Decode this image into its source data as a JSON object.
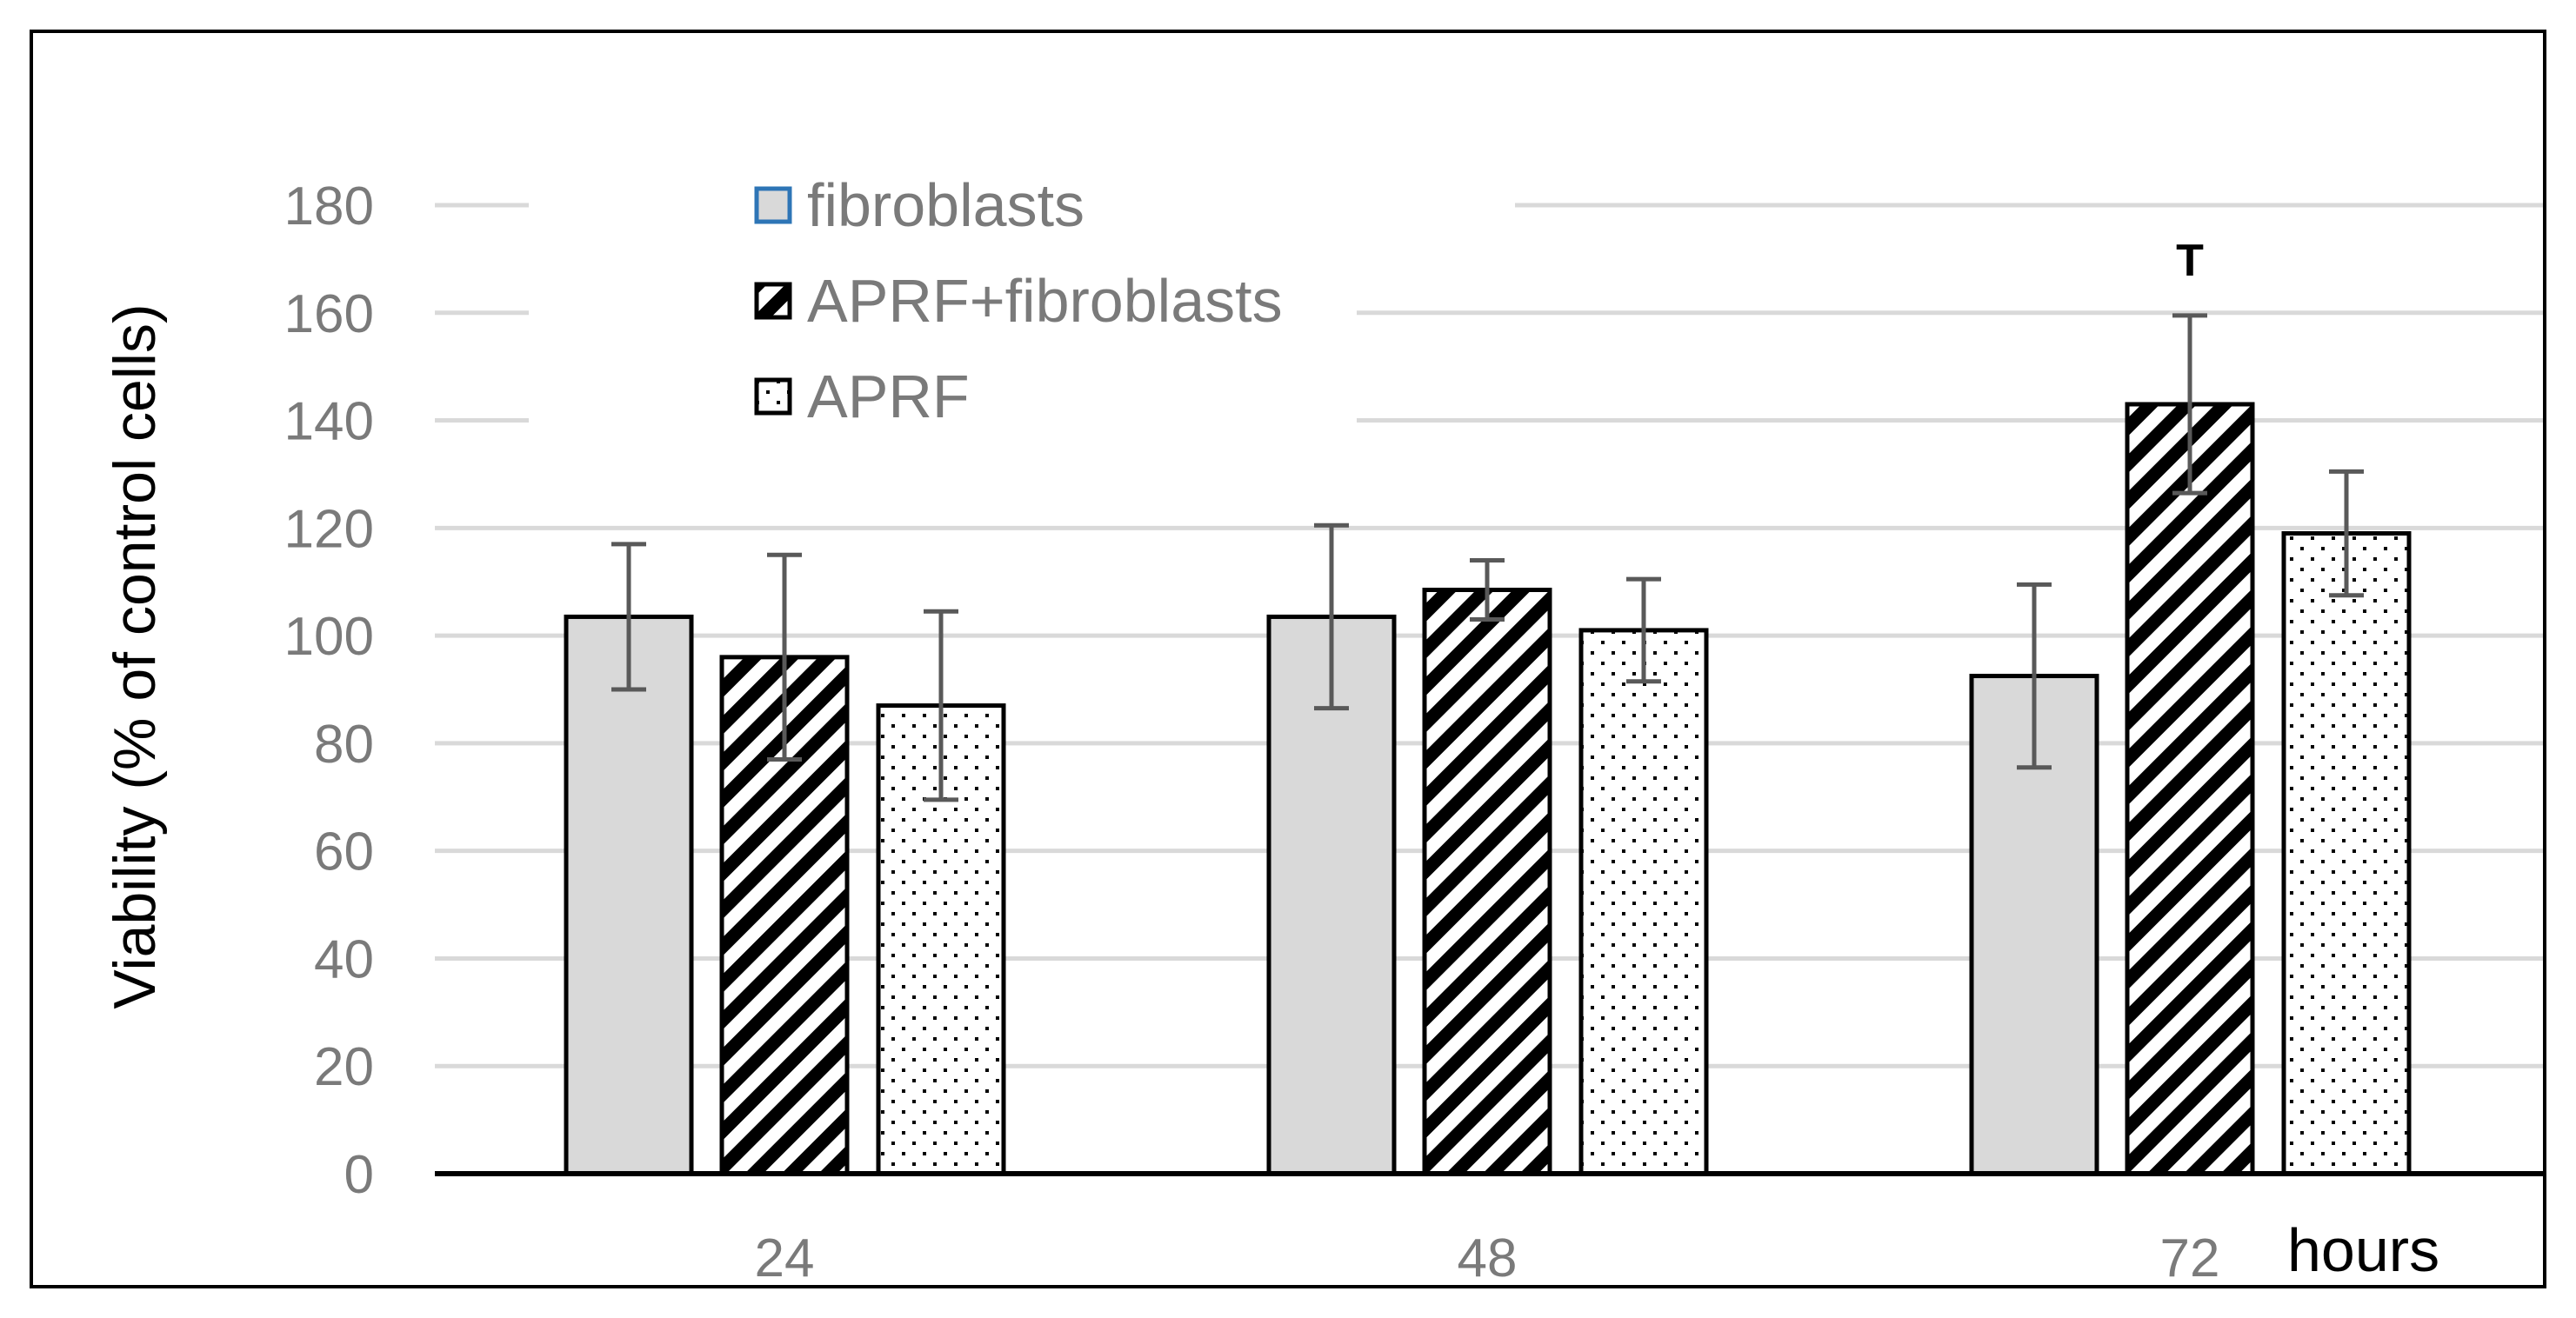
{
  "chart_data": {
    "type": "bar",
    "title": "",
    "xlabel": "",
    "ylabel": "Viability (% of control cells)",
    "x_unit_label": "hours",
    "categories": [
      "24",
      "48",
      "72"
    ],
    "ylim": [
      0,
      180
    ],
    "yticks": [
      0,
      20,
      40,
      60,
      80,
      100,
      120,
      140,
      160,
      180
    ],
    "grid": true,
    "legend_position": "top-left",
    "series": [
      {
        "name": "fibroblasts",
        "pattern": "solid",
        "fill": "#d9d9d9",
        "legend_edge": "#2e75b6",
        "values": [
          103.5,
          103.5,
          92.5
        ],
        "errors": [
          13.5,
          17,
          17
        ]
      },
      {
        "name": "APRF+fibroblasts",
        "pattern": "diagonal",
        "fill": "#000000",
        "legend_edge": "#000000",
        "values": [
          96,
          108.5,
          143
        ],
        "errors": [
          19,
          5.5,
          16.5
        ]
      },
      {
        "name": "APRF",
        "pattern": "dots",
        "fill": "#000000",
        "legend_edge": "#000000",
        "values": [
          87,
          101,
          119
        ],
        "errors": [
          17.5,
          9.5,
          11.5
        ]
      }
    ],
    "annotations": [
      {
        "text": "T",
        "category": "72",
        "series": "APRF+fibroblasts"
      }
    ],
    "colors": {
      "gridline": "#d9d9d9",
      "axis": "#000000",
      "errorbar": "#595959",
      "tick_text": "#7a7a7a",
      "frame": "#000000"
    }
  }
}
